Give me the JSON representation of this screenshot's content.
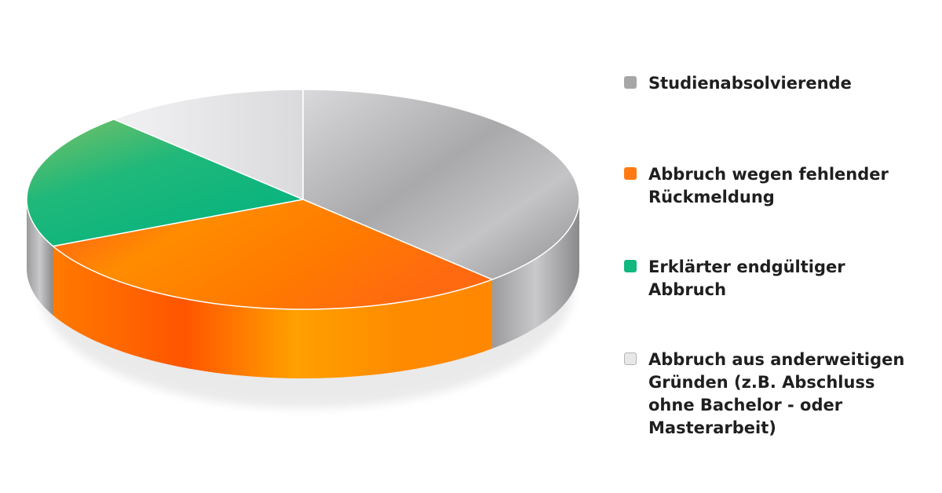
{
  "chart_data": {
    "type": "pie",
    "title": "",
    "categories": [
      "Studienabsolvierende",
      "Abbruch wegen fehlender Rückmeldung",
      "Erklärter endgültiger Abbruch",
      "Abbruch aus anderweitigen Gründen (z.B. Abschluss ohne Bachelor - oder Masterarbeit)"
    ],
    "values": [
      38,
      30,
      20,
      12
    ],
    "colors": [
      "#a6a6a6",
      "#ff7a12",
      "#10b77f",
      "#e6e6e8"
    ],
    "legend_position": "right"
  },
  "legend": {
    "items": [
      {
        "label": "Studienabsolvierende",
        "color": "#a6a6a6"
      },
      {
        "label": "Abbruch wegen fehlender Rückmeldung",
        "color": "#ff7a12"
      },
      {
        "label": "Erklärter endgültiger Abbruch",
        "color": "#10b77f"
      },
      {
        "label": "Abbruch aus anderweitigen Gründen (z.B. Abschluss ohne Bachelor - oder Masterarbeit)",
        "color": "#e8e8e8"
      }
    ]
  }
}
